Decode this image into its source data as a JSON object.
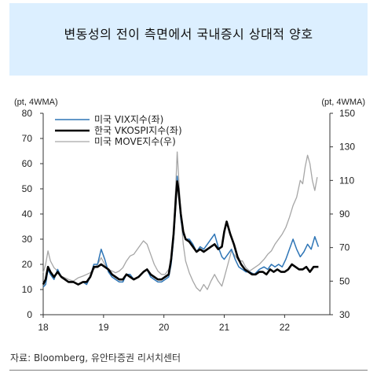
{
  "title": "변동성의 전이 측면에서 국내증시 상대적 양호",
  "source": "자료: Bloomberg, 유안타증권 리서치센터",
  "chart_data": {
    "type": "line",
    "left_unit": "(pt, 4WMA)",
    "right_unit": "(pt, 4WMA)",
    "x_ticks": [
      "18",
      "19",
      "20",
      "21",
      "22"
    ],
    "x_range": [
      2018.0,
      2022.75
    ],
    "left_ylim": [
      0,
      80
    ],
    "left_yticks": [
      0,
      10,
      20,
      30,
      40,
      50,
      60,
      70,
      80
    ],
    "right_ylim": [
      30,
      150
    ],
    "right_yticks": [
      30,
      50,
      70,
      90,
      110,
      130,
      150
    ],
    "grid": false,
    "legend_position": "top-left",
    "series": [
      {
        "name": "미국 VIX지수(좌)",
        "axis": "left",
        "color": "#2e75b6",
        "points": [
          [
            2018.0,
            11
          ],
          [
            2018.04,
            12
          ],
          [
            2018.08,
            18
          ],
          [
            2018.12,
            16
          ],
          [
            2018.18,
            14
          ],
          [
            2018.24,
            18
          ],
          [
            2018.3,
            15
          ],
          [
            2018.36,
            14
          ],
          [
            2018.42,
            13
          ],
          [
            2018.5,
            13
          ],
          [
            2018.58,
            12
          ],
          [
            2018.66,
            13
          ],
          [
            2018.72,
            12
          ],
          [
            2018.78,
            15
          ],
          [
            2018.84,
            20
          ],
          [
            2018.9,
            20
          ],
          [
            2018.96,
            26
          ],
          [
            2019.02,
            22
          ],
          [
            2019.08,
            17
          ],
          [
            2019.14,
            15
          ],
          [
            2019.2,
            14
          ],
          [
            2019.26,
            13
          ],
          [
            2019.32,
            13
          ],
          [
            2019.38,
            16
          ],
          [
            2019.44,
            16
          ],
          [
            2019.5,
            14
          ],
          [
            2019.58,
            15
          ],
          [
            2019.66,
            17
          ],
          [
            2019.72,
            18
          ],
          [
            2019.78,
            15
          ],
          [
            2019.84,
            14
          ],
          [
            2019.9,
            13
          ],
          [
            2019.96,
            13
          ],
          [
            2020.02,
            14
          ],
          [
            2020.08,
            15
          ],
          [
            2020.12,
            20
          ],
          [
            2020.16,
            30
          ],
          [
            2020.2,
            45
          ],
          [
            2020.22,
            55
          ],
          [
            2020.24,
            50
          ],
          [
            2020.28,
            38
          ],
          [
            2020.32,
            32
          ],
          [
            2020.36,
            30
          ],
          [
            2020.42,
            30
          ],
          [
            2020.48,
            28
          ],
          [
            2020.54,
            25
          ],
          [
            2020.6,
            27
          ],
          [
            2020.66,
            26
          ],
          [
            2020.72,
            28
          ],
          [
            2020.78,
            30
          ],
          [
            2020.84,
            32
          ],
          [
            2020.9,
            27
          ],
          [
            2020.96,
            23
          ],
          [
            2021.0,
            22
          ],
          [
            2021.06,
            24
          ],
          [
            2021.12,
            26
          ],
          [
            2021.18,
            22
          ],
          [
            2021.24,
            19
          ],
          [
            2021.3,
            18
          ],
          [
            2021.36,
            17
          ],
          [
            2021.42,
            17
          ],
          [
            2021.5,
            16
          ],
          [
            2021.58,
            18
          ],
          [
            2021.66,
            19
          ],
          [
            2021.72,
            18
          ],
          [
            2021.78,
            20
          ],
          [
            2021.84,
            19
          ],
          [
            2021.9,
            20
          ],
          [
            2021.96,
            19
          ],
          [
            2022.02,
            22
          ],
          [
            2022.08,
            26
          ],
          [
            2022.14,
            30
          ],
          [
            2022.2,
            26
          ],
          [
            2022.26,
            23
          ],
          [
            2022.32,
            25
          ],
          [
            2022.38,
            28
          ],
          [
            2022.44,
            26
          ],
          [
            2022.5,
            31
          ],
          [
            2022.56,
            27
          ]
        ]
      },
      {
        "name": "한국 VKOSPI지수(좌)",
        "axis": "left",
        "color": "#000000",
        "points": [
          [
            2018.0,
            12
          ],
          [
            2018.04,
            14
          ],
          [
            2018.08,
            19
          ],
          [
            2018.12,
            17
          ],
          [
            2018.18,
            15
          ],
          [
            2018.24,
            17
          ],
          [
            2018.3,
            15
          ],
          [
            2018.36,
            14
          ],
          [
            2018.42,
            13
          ],
          [
            2018.5,
            13
          ],
          [
            2018.58,
            12
          ],
          [
            2018.66,
            13
          ],
          [
            2018.72,
            13
          ],
          [
            2018.78,
            15
          ],
          [
            2018.84,
            19
          ],
          [
            2018.9,
            19
          ],
          [
            2018.96,
            20
          ],
          [
            2019.02,
            19
          ],
          [
            2019.08,
            18
          ],
          [
            2019.14,
            16
          ],
          [
            2019.2,
            15
          ],
          [
            2019.26,
            14
          ],
          [
            2019.32,
            14
          ],
          [
            2019.38,
            16
          ],
          [
            2019.44,
            15
          ],
          [
            2019.5,
            14
          ],
          [
            2019.58,
            15
          ],
          [
            2019.66,
            17
          ],
          [
            2019.72,
            18
          ],
          [
            2019.78,
            16
          ],
          [
            2019.84,
            15
          ],
          [
            2019.9,
            14
          ],
          [
            2019.96,
            14
          ],
          [
            2020.02,
            15
          ],
          [
            2020.08,
            16
          ],
          [
            2020.12,
            22
          ],
          [
            2020.16,
            32
          ],
          [
            2020.2,
            47
          ],
          [
            2020.22,
            53
          ],
          [
            2020.24,
            50
          ],
          [
            2020.28,
            40
          ],
          [
            2020.32,
            33
          ],
          [
            2020.36,
            30
          ],
          [
            2020.42,
            29
          ],
          [
            2020.48,
            27
          ],
          [
            2020.54,
            25
          ],
          [
            2020.6,
            26
          ],
          [
            2020.66,
            25
          ],
          [
            2020.72,
            26
          ],
          [
            2020.78,
            27
          ],
          [
            2020.84,
            28
          ],
          [
            2020.9,
            26
          ],
          [
            2020.96,
            27
          ],
          [
            2021.0,
            33
          ],
          [
            2021.04,
            37
          ],
          [
            2021.1,
            32
          ],
          [
            2021.16,
            28
          ],
          [
            2021.22,
            23
          ],
          [
            2021.28,
            20
          ],
          [
            2021.34,
            18
          ],
          [
            2021.4,
            17
          ],
          [
            2021.46,
            16
          ],
          [
            2021.52,
            16
          ],
          [
            2021.58,
            17
          ],
          [
            2021.64,
            17
          ],
          [
            2021.7,
            16
          ],
          [
            2021.76,
            18
          ],
          [
            2021.82,
            17
          ],
          [
            2021.88,
            18
          ],
          [
            2021.94,
            17
          ],
          [
            2022.0,
            17
          ],
          [
            2022.06,
            18
          ],
          [
            2022.12,
            20
          ],
          [
            2022.18,
            19
          ],
          [
            2022.24,
            18
          ],
          [
            2022.3,
            18
          ],
          [
            2022.36,
            19
          ],
          [
            2022.42,
            17
          ],
          [
            2022.48,
            19
          ],
          [
            2022.56,
            19
          ]
        ]
      },
      {
        "name": "미국 MOVE지수(우)",
        "axis": "right",
        "color": "#a6a6a6",
        "points": [
          [
            2018.0,
            55
          ],
          [
            2018.04,
            60
          ],
          [
            2018.08,
            68
          ],
          [
            2018.12,
            62
          ],
          [
            2018.18,
            58
          ],
          [
            2018.24,
            56
          ],
          [
            2018.3,
            53
          ],
          [
            2018.36,
            52
          ],
          [
            2018.42,
            51
          ],
          [
            2018.5,
            50
          ],
          [
            2018.58,
            52
          ],
          [
            2018.66,
            53
          ],
          [
            2018.72,
            54
          ],
          [
            2018.78,
            55
          ],
          [
            2018.84,
            57
          ],
          [
            2018.9,
            60
          ],
          [
            2018.96,
            64
          ],
          [
            2019.02,
            60
          ],
          [
            2019.08,
            57
          ],
          [
            2019.14,
            56
          ],
          [
            2019.2,
            55
          ],
          [
            2019.26,
            56
          ],
          [
            2019.32,
            58
          ],
          [
            2019.38,
            62
          ],
          [
            2019.44,
            65
          ],
          [
            2019.5,
            66
          ],
          [
            2019.58,
            70
          ],
          [
            2019.66,
            74
          ],
          [
            2019.72,
            72
          ],
          [
            2019.78,
            66
          ],
          [
            2019.84,
            60
          ],
          [
            2019.9,
            56
          ],
          [
            2019.96,
            54
          ],
          [
            2020.02,
            54
          ],
          [
            2020.08,
            57
          ],
          [
            2020.12,
            62
          ],
          [
            2020.16,
            80
          ],
          [
            2020.2,
            110
          ],
          [
            2020.22,
            127
          ],
          [
            2020.24,
            115
          ],
          [
            2020.28,
            90
          ],
          [
            2020.32,
            72
          ],
          [
            2020.36,
            62
          ],
          [
            2020.42,
            55
          ],
          [
            2020.48,
            50
          ],
          [
            2020.54,
            46
          ],
          [
            2020.6,
            44
          ],
          [
            2020.66,
            48
          ],
          [
            2020.72,
            45
          ],
          [
            2020.78,
            50
          ],
          [
            2020.84,
            54
          ],
          [
            2020.9,
            50
          ],
          [
            2020.96,
            47
          ],
          [
            2021.0,
            52
          ],
          [
            2021.06,
            60
          ],
          [
            2021.12,
            68
          ],
          [
            2021.18,
            65
          ],
          [
            2021.24,
            62
          ],
          [
            2021.3,
            62
          ],
          [
            2021.36,
            58
          ],
          [
            2021.42,
            56
          ],
          [
            2021.5,
            58
          ],
          [
            2021.58,
            60
          ],
          [
            2021.66,
            63
          ],
          [
            2021.72,
            66
          ],
          [
            2021.78,
            68
          ],
          [
            2021.84,
            72
          ],
          [
            2021.9,
            75
          ],
          [
            2021.96,
            78
          ],
          [
            2022.02,
            82
          ],
          [
            2022.08,
            88
          ],
          [
            2022.14,
            95
          ],
          [
            2022.2,
            100
          ],
          [
            2022.26,
            110
          ],
          [
            2022.3,
            108
          ],
          [
            2022.34,
            118
          ],
          [
            2022.38,
            125
          ],
          [
            2022.42,
            120
          ],
          [
            2022.46,
            110
          ],
          [
            2022.5,
            104
          ],
          [
            2022.54,
            112
          ]
        ]
      }
    ]
  }
}
